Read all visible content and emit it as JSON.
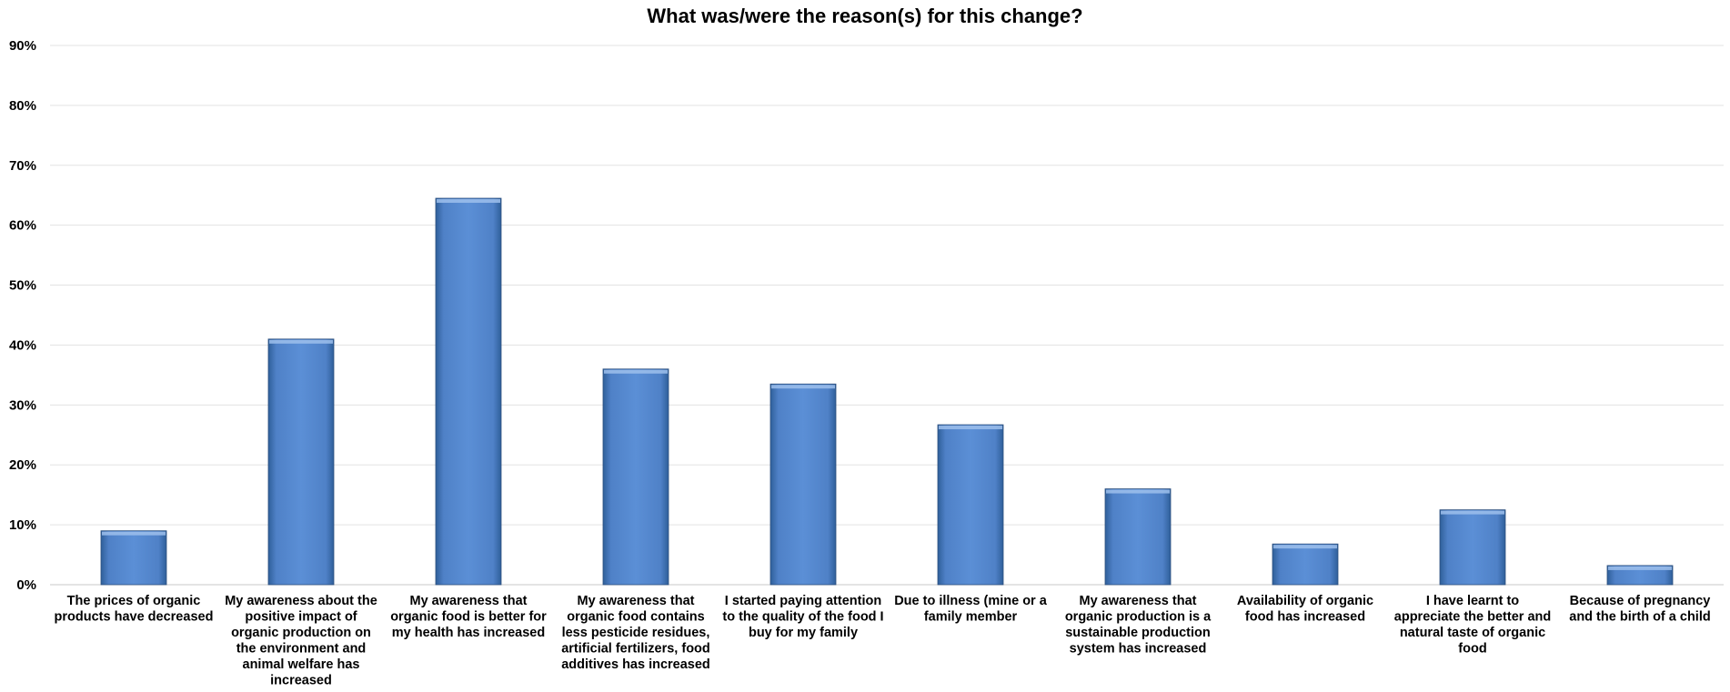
{
  "chart_data": {
    "type": "bar",
    "title": "What was/were the reason(s) for this change?",
    "xlabel": "",
    "ylabel": "",
    "ylim": [
      0,
      90
    ],
    "y_ticks": [
      "0%",
      "10%",
      "20%",
      "30%",
      "40%",
      "50%",
      "60%",
      "70%",
      "80%",
      "90%"
    ],
    "grid": true,
    "legend": "none",
    "bar_color": "#4f81c7",
    "categories": [
      [
        "The prices of organic",
        "products have decreased"
      ],
      [
        "My awareness about the",
        "positive impact of",
        "organic production on",
        "the environment and",
        "animal welfare has",
        "increased"
      ],
      [
        "My awareness that",
        "organic food is better for",
        "my health has increased"
      ],
      [
        "My awareness that",
        "organic food contains",
        "less pesticide residues,",
        "artificial fertilizers, food",
        "additives has increased"
      ],
      [
        "I started paying attention",
        "to the quality of the food I",
        "buy for my family"
      ],
      [
        "Due to illness (mine or a",
        "family member"
      ],
      [
        "My awareness that",
        "organic production is a",
        "sustainable production",
        "system has increased"
      ],
      [
        "Availability of organic",
        "food has increased"
      ],
      [
        "I have learnt to",
        "appreciate the better and",
        "natural taste of organic",
        "food"
      ],
      [
        "Because of pregnancy",
        "and the birth of a child"
      ]
    ],
    "values": [
      9,
      41,
      64.5,
      36,
      33.5,
      26.7,
      16,
      6.8,
      12.5,
      3.2
    ]
  }
}
